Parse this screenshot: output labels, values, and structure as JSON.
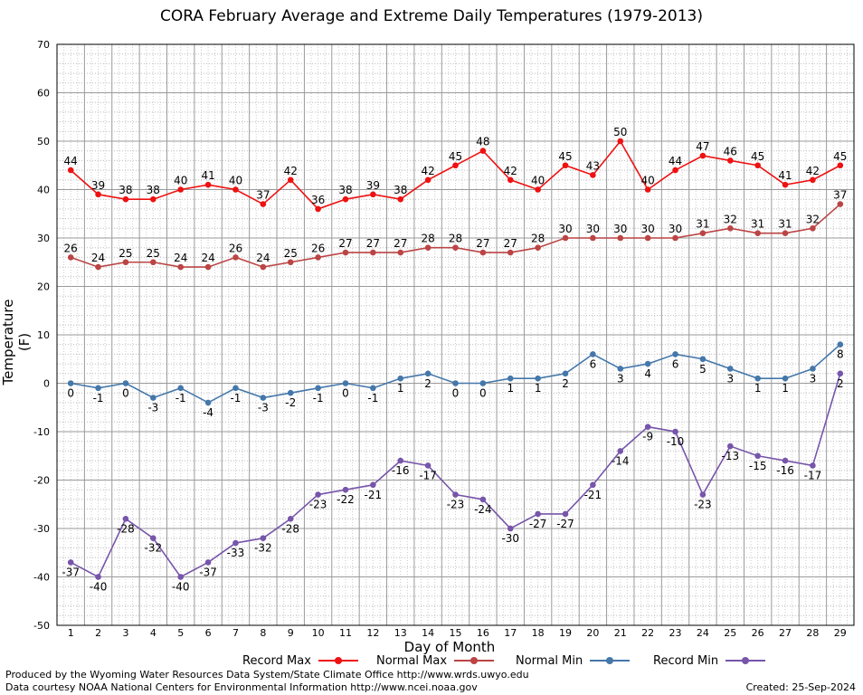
{
  "header": {
    "title": "CORA February Average and Extreme Daily Temperatures (1979-2013)"
  },
  "footer": {
    "produced_by": "Produced by the Wyoming Water Resources Data System/State Climate Office http://www.wrds.uwyo.edu",
    "data_courtesy": "Data courtesy NOAA National Centers for Environmental Information http://www.ncei.noaa.gov",
    "created": "Created:  25-Sep-2024"
  },
  "chart_data": {
    "type": "line",
    "title": "CORA February Average and Extreme Daily Temperatures (1979-2013)",
    "xlabel": "Day of Month",
    "ylabel": "Temperature (F)",
    "x": [
      1,
      2,
      3,
      4,
      5,
      6,
      7,
      8,
      9,
      10,
      11,
      12,
      13,
      14,
      15,
      16,
      17,
      18,
      19,
      20,
      21,
      22,
      23,
      24,
      25,
      26,
      27,
      28,
      29
    ],
    "ylim": [
      -50,
      70
    ],
    "yticks": [
      -50,
      -40,
      -30,
      -20,
      -10,
      0,
      10,
      20,
      30,
      40,
      50,
      60,
      70
    ],
    "grid": true,
    "legend": "bottom",
    "series": [
      {
        "name": "Record Max",
        "color": "#ee1111",
        "label_position": "above",
        "values": [
          44,
          39,
          38,
          38,
          40,
          41,
          40,
          37,
          42,
          36,
          38,
          39,
          38,
          42,
          45,
          48,
          42,
          40,
          45,
          43,
          50,
          40,
          44,
          47,
          46,
          45,
          41,
          42,
          45
        ]
      },
      {
        "name": "Normal Max",
        "color": "#bb4444",
        "label_position": "above",
        "values": [
          26,
          24,
          25,
          25,
          24,
          24,
          26,
          24,
          25,
          26,
          27,
          27,
          27,
          28,
          28,
          27,
          27,
          28,
          30,
          30,
          30,
          30,
          30,
          31,
          32,
          31,
          31,
          32,
          37
        ]
      },
      {
        "name": "Normal Min",
        "color": "#4477aa",
        "label_position": "below",
        "values": [
          0,
          -1,
          0,
          -3,
          -1,
          -4,
          -1,
          -3,
          -2,
          -1,
          0,
          -1,
          1,
          2,
          0,
          0,
          1,
          1,
          2,
          6,
          3,
          4,
          6,
          5,
          3,
          1,
          1,
          3,
          8
        ]
      },
      {
        "name": "Record Min",
        "color": "#7755aa",
        "label_position": "below",
        "values": [
          -37,
          -40,
          -28,
          -32,
          -40,
          -37,
          -33,
          -32,
          -28,
          -23,
          -22,
          -21,
          -16,
          -17,
          -23,
          -24,
          -30,
          -27,
          -27,
          -21,
          -14,
          -9,
          -10,
          -23,
          -13,
          -15,
          -16,
          -17,
          2
        ]
      }
    ]
  }
}
